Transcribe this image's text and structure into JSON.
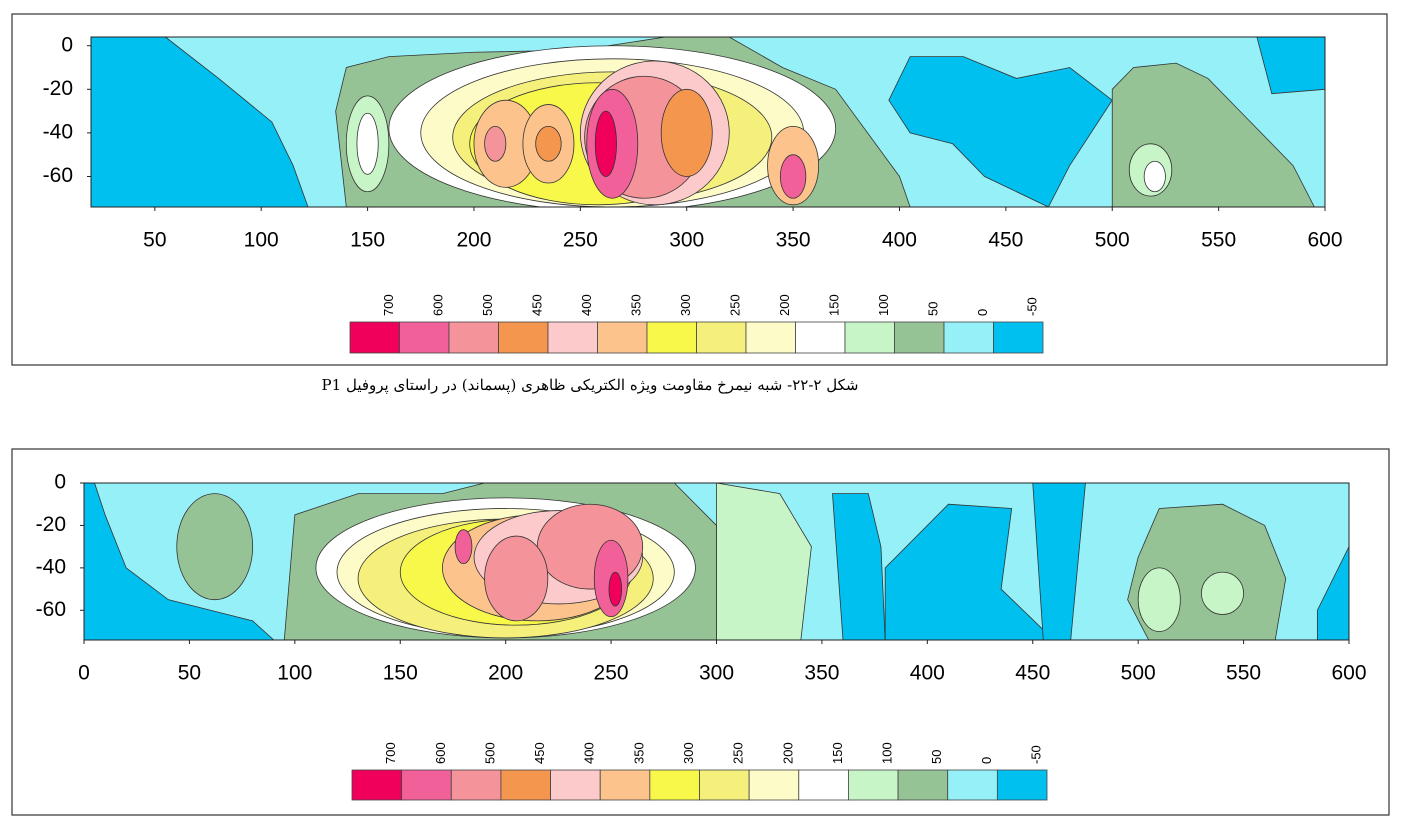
{
  "chart_data": [
    {
      "type": "contour",
      "xlim": [
        20,
        600
      ],
      "xticks": [
        50,
        100,
        150,
        200,
        250,
        300,
        350,
        400,
        450,
        500,
        550,
        600
      ],
      "ylim": [
        4,
        -74
      ],
      "yticks": [
        0,
        -20,
        -40,
        -60
      ],
      "colorbar": {
        "levels": [
          700,
          600,
          500,
          450,
          400,
          350,
          300,
          250,
          200,
          150,
          100,
          50,
          0,
          -50
        ],
        "colors": [
          "#f0005a",
          "#f2609a",
          "#f5939a",
          "#f5964e",
          "#fccaca",
          "#fcc48c",
          "#f8f84a",
          "#f5f07c",
          "#fdfcc8",
          "#ffffff",
          "#c8f5c8",
          "#96c396",
          "#96f0f8",
          "#00c0f0"
        ]
      }
    },
    {
      "type": "contour",
      "xlim": [
        0,
        600
      ],
      "xticks": [
        0,
        50,
        100,
        150,
        200,
        250,
        300,
        350,
        400,
        450,
        500,
        550,
        600
      ],
      "ylim": [
        0,
        -74
      ],
      "yticks": [
        0,
        -20,
        -40,
        -60
      ],
      "colorbar": {
        "levels": [
          700,
          600,
          500,
          450,
          400,
          350,
          300,
          250,
          200,
          150,
          100,
          50,
          0,
          -50
        ],
        "colors": [
          "#f0005a",
          "#f2609a",
          "#f5939a",
          "#f5964e",
          "#fccaca",
          "#fcc48c",
          "#f8f84a",
          "#f5f07c",
          "#fdfcc8",
          "#ffffff",
          "#c8f5c8",
          "#96c396",
          "#96f0f8",
          "#00c0f0"
        ]
      }
    }
  ],
  "caption": "شکل ۲-۲۲- شبه نیمرخ مقاومت ویژه الکتریکی ظاهری (پسماند) در راستای پروفیل P1"
}
